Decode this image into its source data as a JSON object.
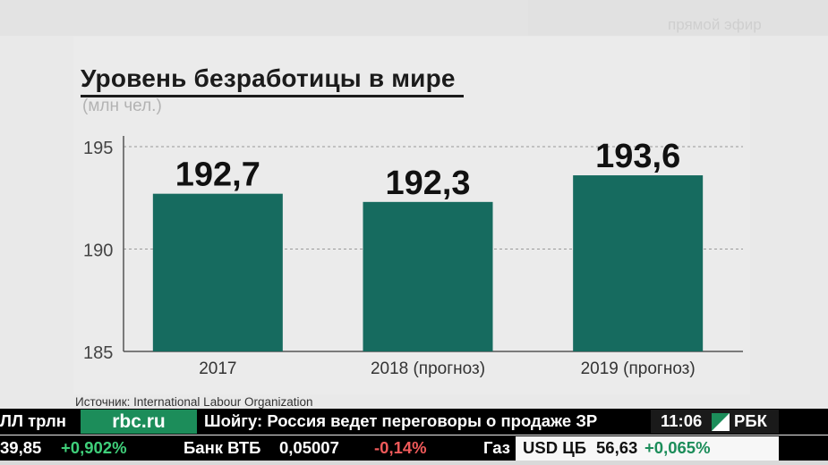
{
  "live_label": "прямой эфир",
  "chart_data": {
    "type": "bar",
    "title": "Уровень безработицы в мире",
    "subtitle": "(млн чел.)",
    "categories": [
      "2017",
      "2018 (прогноз)",
      "2019 (прогноз)"
    ],
    "values": [
      192.7,
      192.3,
      193.6
    ],
    "value_labels": [
      "192,7",
      "192,3",
      "193,6"
    ],
    "ylim": [
      185,
      195
    ],
    "yticks": [
      "185",
      "190",
      "195"
    ],
    "ytick_values": [
      185,
      190,
      195
    ],
    "grid": true,
    "bar_color": "#166b5f",
    "source": "Источник: International Labour Organization"
  },
  "ticker": {
    "row1_left": "ЛЛ трлн",
    "site": "rbc.ru",
    "headline": "Шойгу: Россия ведет переговоры о продаже ЗР",
    "clock": "11:06",
    "brand": "РБК",
    "row2_price": "39,85",
    "row2_change": "+0,902%",
    "bank_name": "Банк ВТБ",
    "bank_price": "0,05007",
    "bank_change": "-0,14%",
    "gas_label": "Газ",
    "usd_label": "USD ЦБ",
    "usd_value": "56,63",
    "usd_change": "+0,065%"
  },
  "colors": {
    "bar": "#166b5f",
    "ticker_green": "#3fcf7a",
    "ticker_red": "#f05a5a",
    "rbc_green": "#1c8d5a"
  }
}
